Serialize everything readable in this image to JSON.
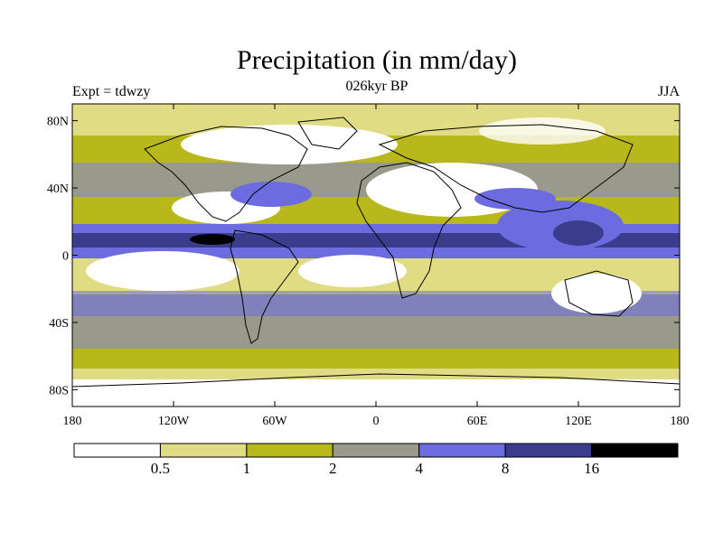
{
  "title": "Precipitation (in mm/day)",
  "left_label": "Expt = tdwzy",
  "center_label": "026kyr BP",
  "right_label": "JJA",
  "map": {
    "lon_range": [
      -180,
      180
    ],
    "lat_range": [
      -90,
      90
    ],
    "y_ticks": [
      {
        "lat": 80,
        "label": "80N"
      },
      {
        "lat": 40,
        "label": "40N"
      },
      {
        "lat": 0,
        "label": "0"
      },
      {
        "lat": -40,
        "label": "40S"
      },
      {
        "lat": -80,
        "label": "80S"
      }
    ],
    "x_ticks": [
      {
        "lon": -180,
        "label": "180"
      },
      {
        "lon": -120,
        "label": "120W"
      },
      {
        "lon": -60,
        "label": "60W"
      },
      {
        "lon": 0,
        "label": "0"
      },
      {
        "lon": 60,
        "label": "60E"
      },
      {
        "lon": 120,
        "label": "120E"
      },
      {
        "lon": 180,
        "label": "180"
      }
    ]
  },
  "colorbar": {
    "colors": [
      "#ffffff",
      "#e0dc84",
      "#b8b81c",
      "#9a9a8c",
      "#6c6ce0",
      "#3c3c8c",
      "#000000"
    ],
    "labels": [
      "0.5",
      "1",
      "2",
      "4",
      "8",
      "16"
    ]
  }
}
